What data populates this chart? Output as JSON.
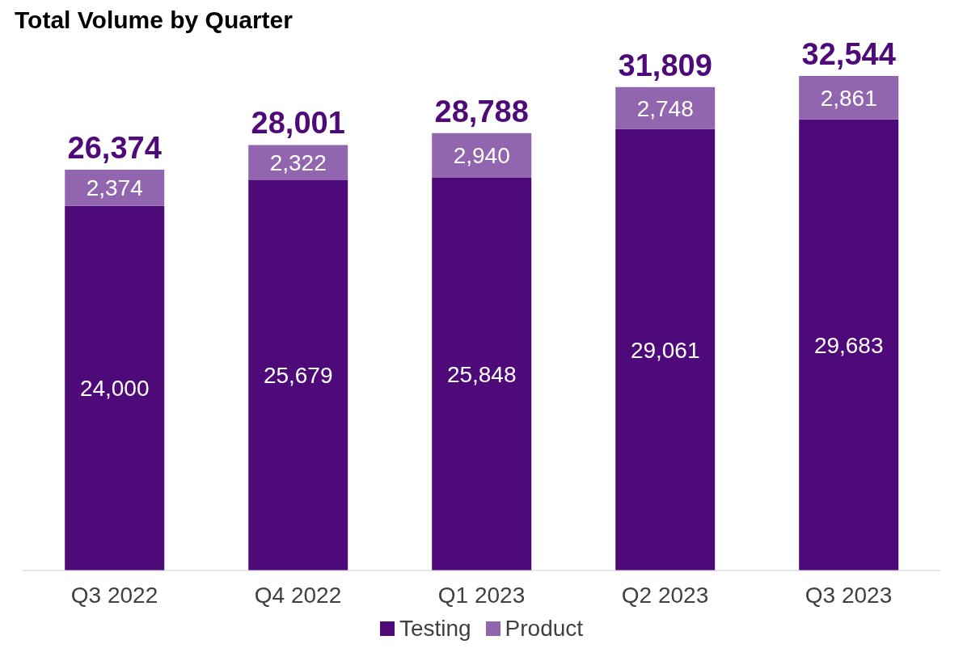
{
  "chart_data": {
    "type": "bar",
    "title": "Total Volume by Quarter",
    "categories": [
      "Q3 2022",
      "Q4 2022",
      "Q1 2023",
      "Q2 2023",
      "Q3 2023"
    ],
    "stacked": true,
    "legend": "bottom",
    "series": [
      {
        "name": "Testing",
        "color": "#4f0a7a",
        "values": [
          24000,
          25679,
          25848,
          29061,
          29683
        ],
        "value_labels": [
          "24,000",
          "25,679",
          "25,848",
          "29,061",
          "29,683"
        ]
      },
      {
        "name": "Product",
        "color": "#9266ae",
        "values": [
          2374,
          2322,
          2940,
          2748,
          2861
        ],
        "value_labels": [
          "2,374",
          "2,322",
          "2,940",
          "2,748",
          "2,861"
        ]
      }
    ],
    "totals": [
      "26,374",
      "28,001",
      "28,788",
      "31,809",
      "32,544"
    ]
  }
}
